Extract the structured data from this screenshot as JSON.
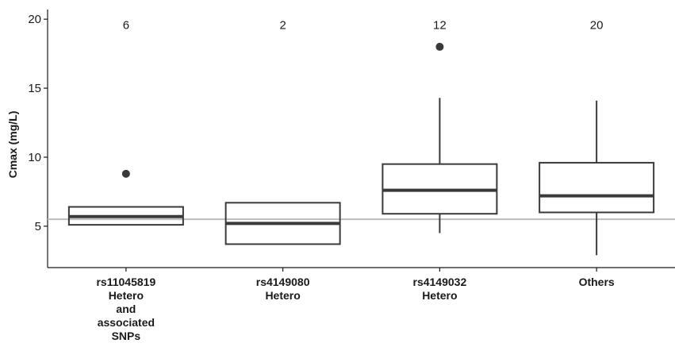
{
  "chart_data": {
    "type": "box",
    "title": "",
    "xlabel": "",
    "ylabel": "Cmax (mg/L)",
    "ylim": [
      2,
      20.7
    ],
    "yticks": [
      5,
      10,
      15,
      20
    ],
    "ytick_labels": [
      "5",
      "10",
      "15",
      "20"
    ],
    "grid": false,
    "legend": "none",
    "reference_line": {
      "y": 5.5,
      "color": "#bdbdbd"
    },
    "categories": [
      {
        "label_lines": [
          "rs11045819",
          "Hetero",
          "and",
          "associated",
          "SNPs"
        ],
        "n": "6"
      },
      {
        "label_lines": [
          "rs4149080",
          "Hetero"
        ],
        "n": "2"
      },
      {
        "label_lines": [
          "rs4149032",
          "Hetero"
        ],
        "n": "12"
      },
      {
        "label_lines": [
          "Others"
        ],
        "n": "20"
      }
    ],
    "boxes": [
      {
        "q1": 5.1,
        "median": 5.7,
        "q3": 6.4,
        "whisker_low": null,
        "whisker_high": null,
        "outliers": [
          8.8
        ]
      },
      {
        "q1": 3.7,
        "median": 5.2,
        "q3": 6.7,
        "whisker_low": null,
        "whisker_high": null,
        "outliers": []
      },
      {
        "q1": 5.9,
        "median": 7.6,
        "q3": 9.5,
        "whisker_low": 4.5,
        "whisker_high": 14.3,
        "outliers": [
          18.0
        ]
      },
      {
        "q1": 6.0,
        "median": 7.2,
        "q3": 9.6,
        "whisker_low": 2.9,
        "whisker_high": 14.1,
        "outliers": []
      }
    ],
    "colors": {
      "box": "#3a3a3a",
      "median": "#3a3a3a",
      "outlier": "#3a3a3a",
      "axis": "#1a1a1a"
    }
  }
}
